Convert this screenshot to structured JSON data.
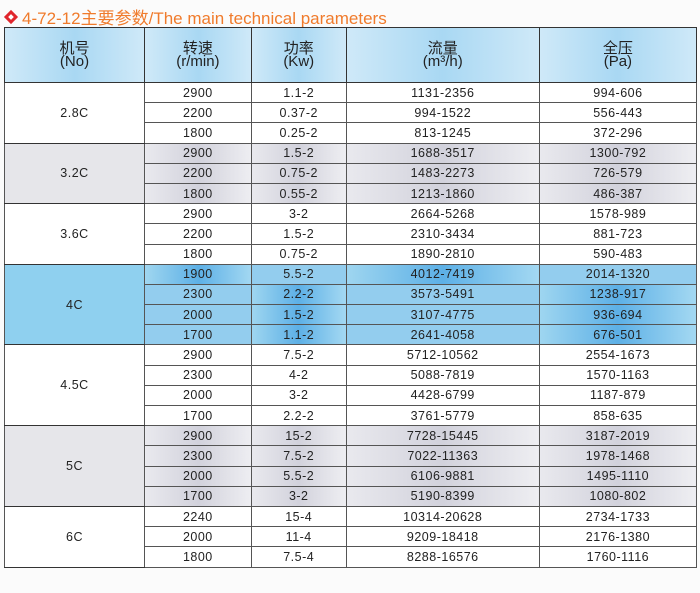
{
  "title": "4-72-12主要参数/The main technical parameters",
  "headers": [
    {
      "cn": "机号",
      "en": "(No)"
    },
    {
      "cn": "转速",
      "en": "(r/min)"
    },
    {
      "cn": "功率",
      "en": "(Kw)"
    },
    {
      "cn": "流量",
      "en": "(m³/h)"
    },
    {
      "cn": "全压",
      "en": "(Pa)"
    }
  ],
  "groups": [
    {
      "model": "2.8C",
      "shade": "white",
      "rows": [
        [
          "2900",
          "1.1-2",
          "1131-2356",
          "994-606"
        ],
        [
          "2200",
          "0.37-2",
          "994-1522",
          "556-443"
        ],
        [
          "1800",
          "0.25-2",
          "813-1245",
          "372-296"
        ]
      ]
    },
    {
      "model": "3.2C",
      "shade": "gray",
      "rows": [
        [
          "2900",
          "1.5-2",
          "1688-3517",
          "1300-792"
        ],
        [
          "2200",
          "0.75-2",
          "1483-2273",
          "726-579"
        ],
        [
          "1800",
          "0.55-2",
          "1213-1860",
          "486-387"
        ]
      ]
    },
    {
      "model": "3.6C",
      "shade": "white",
      "rows": [
        [
          "2900",
          "3-2",
          "2664-5268",
          "1578-989"
        ],
        [
          "2200",
          "1.5-2",
          "2310-3434",
          "881-723"
        ],
        [
          "1800",
          "0.75-2",
          "1890-2810",
          "590-483"
        ]
      ]
    },
    {
      "model": "4C",
      "shade": "blue",
      "rows": [
        [
          "1900",
          "5.5-2",
          "4012-7419",
          "2014-1320"
        ],
        [
          "2300",
          "2.2-2",
          "3573-5491",
          "1238-917"
        ],
        [
          "2000",
          "1.5-2",
          "3107-4775",
          "936-694"
        ],
        [
          "1700",
          "1.1-2",
          "2641-4058",
          "676-501"
        ]
      ]
    },
    {
      "model": "4.5C",
      "shade": "white",
      "rows": [
        [
          "2900",
          "7.5-2",
          "5712-10562",
          "2554-1673"
        ],
        [
          "2300",
          "4-2",
          "5088-7819",
          "1570-1163"
        ],
        [
          "2000",
          "3-2",
          "4428-6799",
          "1187-879"
        ],
        [
          "1700",
          "2.2-2",
          "3761-5779",
          "858-635"
        ]
      ]
    },
    {
      "model": "5C",
      "shade": "gray",
      "rows": [
        [
          "2900",
          "15-2",
          "7728-15445",
          "3187-2019"
        ],
        [
          "2300",
          "7.5-2",
          "7022-11363",
          "1978-1468"
        ],
        [
          "2000",
          "5.5-2",
          "6106-9881",
          "1495-1110"
        ],
        [
          "1700",
          "3-2",
          "5190-8399",
          "1080-802"
        ]
      ]
    },
    {
      "model": "6C",
      "shade": "white",
      "rows": [
        [
          "2240",
          "15-4",
          "10314-20628",
          "2734-1733"
        ],
        [
          "2000",
          "11-4",
          "9209-18418",
          "2176-1380"
        ],
        [
          "1800",
          "7.5-4",
          "8288-16576",
          "1760-1116"
        ]
      ]
    }
  ]
}
